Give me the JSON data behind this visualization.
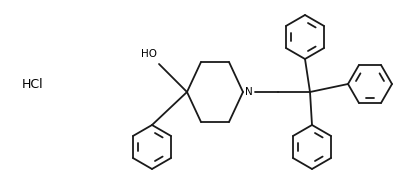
{
  "background_color": "#ffffff",
  "line_color": "#1a1a1a",
  "line_width": 1.3,
  "text_color": "#000000",
  "hcl_label": "HCl",
  "hcl_fontsize": 9,
  "oh_label": "HO",
  "n_label": "N",
  "figsize": [
    4.03,
    1.92
  ],
  "dpi": 100
}
